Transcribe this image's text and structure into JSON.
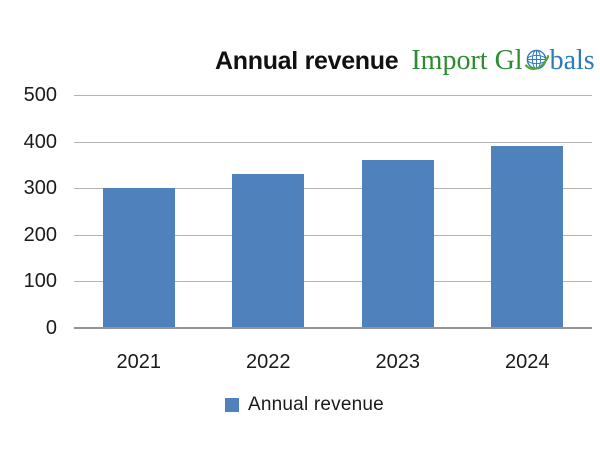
{
  "header": {
    "title": "Annual revenue",
    "logo": {
      "text_green": "Import Gl",
      "text_blue": "bals",
      "green": "#2D8C31",
      "blue": "#2A7ABC"
    }
  },
  "chart_data": {
    "type": "bar",
    "title": "Annual revenue",
    "categories": [
      "2021",
      "2022",
      "2023",
      "2024"
    ],
    "values": [
      300,
      330,
      360,
      390
    ],
    "series": [
      {
        "name": "Annual revenue",
        "values": [
          300,
          330,
          360,
          390
        ]
      }
    ],
    "xlabel": "",
    "ylabel": "",
    "ylim": [
      0,
      500
    ],
    "yticks": [
      0,
      100,
      200,
      300,
      400,
      500
    ],
    "grid": true,
    "legend_position": "bottom",
    "bar_color": "#4F81BD",
    "gridline_color": "#B3B3B3",
    "axis_color": "#949494",
    "label_color": "#1A1A1A"
  },
  "legend": {
    "label": "Annual revenue",
    "swatch_color": "#4F81BD"
  }
}
